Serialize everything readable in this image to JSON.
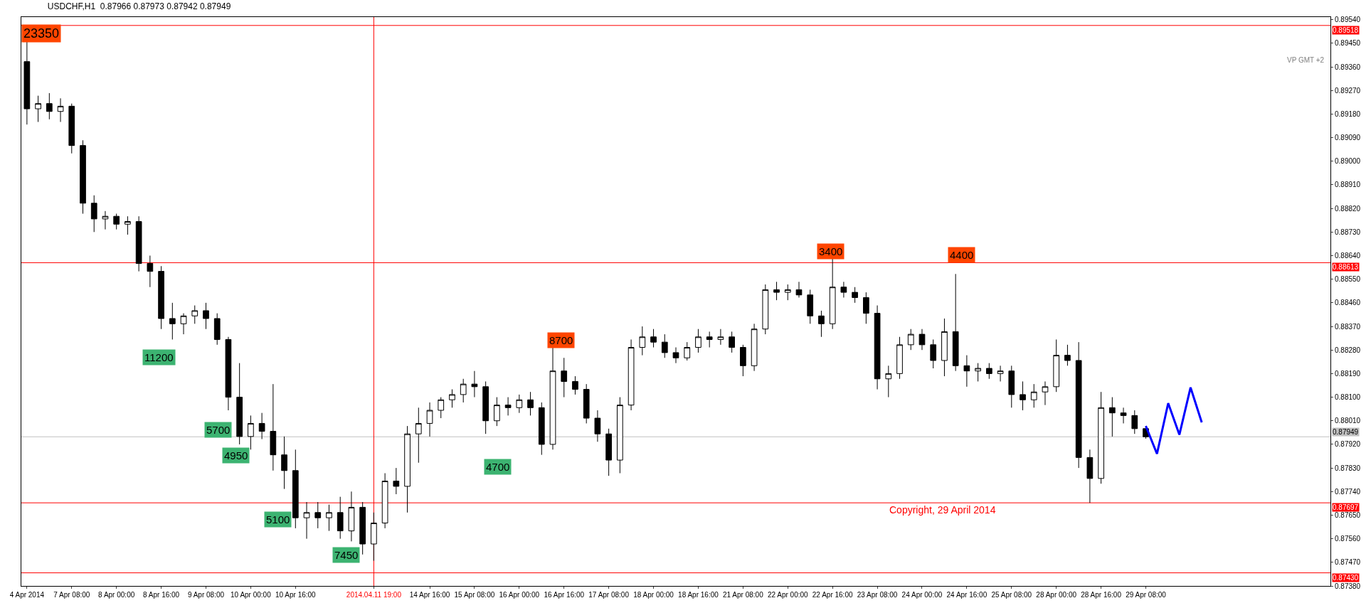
{
  "chart_data": {
    "type": "candlestick",
    "title": "USDCHF,H1  0.87966 0.87973 0.87942 0.87949",
    "color": "#000000",
    "categories": [
      "4 Apr 2014",
      null,
      null,
      null,
      "7 Apr 08:00",
      null,
      null,
      null,
      "8 Apr 00:00",
      null,
      null,
      null,
      "8 Apr 16:00",
      null,
      null,
      null,
      "9 Apr 08:00",
      null,
      null,
      null,
      "10 Apr 00:00",
      null,
      null,
      null,
      "10 Apr 16:00",
      null,
      null,
      null,
      null,
      null,
      null,
      "2014.04.11 19:00",
      null,
      null,
      null,
      null,
      "14 Apr 16:00",
      null,
      null,
      null,
      "15 Apr 08:00",
      null,
      null,
      null,
      "16 Apr 00:00",
      null,
      null,
      null,
      "16 Apr 16:00",
      null,
      null,
      null,
      "17 Apr 08:00",
      null,
      null,
      null,
      "18 Apr 00:00",
      null,
      null,
      null,
      "18 Apr 16:00",
      null,
      null,
      null,
      "21 Apr 08:00",
      null,
      null,
      null,
      "22 Apr 00:00",
      null,
      null,
      null,
      "22 Apr 16:00",
      null,
      null,
      null,
      "23 Apr 08:00",
      null,
      null,
      null,
      "24 Apr 00:00",
      null,
      null,
      null,
      "24 Apr 16:00",
      null,
      null,
      null,
      "25 Apr 08:00",
      null,
      null,
      null,
      "28 Apr 00:00",
      null,
      null,
      null,
      "28 Apr 16:00",
      null,
      null,
      null,
      "29 Apr 08:00",
      null,
      null,
      null,
      null,
      null,
      null,
      null,
      null,
      null,
      null,
      null,
      null,
      null,
      null,
      null,
      null
    ],
    "ohlc": [
      [
        0.8938,
        0.89457,
        0.8914,
        0.892
      ],
      [
        0.892,
        0.8925,
        0.8915,
        0.8922
      ],
      [
        0.8922,
        0.8926,
        0.8916,
        0.8919
      ],
      [
        0.8919,
        0.8924,
        0.8915,
        0.8921
      ],
      [
        0.8921,
        0.8922,
        0.8903,
        0.8906
      ],
      [
        0.8906,
        0.8908,
        0.888,
        0.8884
      ],
      [
        0.8884,
        0.8887,
        0.8873,
        0.8878
      ],
      [
        0.8878,
        0.8881,
        0.8874,
        0.8879
      ],
      [
        0.8879,
        0.888,
        0.8874,
        0.8876
      ],
      [
        0.8876,
        0.8879,
        0.8872,
        0.8877
      ],
      [
        0.8877,
        0.8879,
        0.8858,
        0.8861
      ],
      [
        0.8861,
        0.8864,
        0.8852,
        0.8858
      ],
      [
        0.8858,
        0.886,
        0.8836,
        0.884
      ],
      [
        0.884,
        0.8846,
        0.8832,
        0.8838
      ],
      [
        0.8838,
        0.8842,
        0.8834,
        0.8841
      ],
      [
        0.8841,
        0.8845,
        0.8838,
        0.8843
      ],
      [
        0.8843,
        0.8846,
        0.8836,
        0.884
      ],
      [
        0.884,
        0.8842,
        0.883,
        0.8832
      ],
      [
        0.8832,
        0.8833,
        0.8805,
        0.881
      ],
      [
        0.881,
        0.8823,
        0.8792,
        0.8795
      ],
      [
        0.8795,
        0.8803,
        0.879,
        0.88
      ],
      [
        0.88,
        0.8804,
        0.8794,
        0.8797
      ],
      [
        0.8797,
        0.8815,
        0.8782,
        0.8788
      ],
      [
        0.8788,
        0.8795,
        0.8775,
        0.8782
      ],
      [
        0.8782,
        0.879,
        0.876,
        0.8764
      ],
      [
        0.8764,
        0.877,
        0.8756,
        0.8766
      ],
      [
        0.8766,
        0.877,
        0.876,
        0.8764
      ],
      [
        0.8764,
        0.8769,
        0.8759,
        0.8766
      ],
      [
        0.8766,
        0.8772,
        0.8756,
        0.8759
      ],
      [
        0.8759,
        0.8774,
        0.8755,
        0.8768
      ],
      [
        0.8768,
        0.877,
        0.875,
        0.8754
      ],
      [
        0.8754,
        0.8766,
        0.87476,
        0.8762
      ],
      [
        0.8762,
        0.8781,
        0.876,
        0.8778
      ],
      [
        0.8778,
        0.8783,
        0.8773,
        0.8776
      ],
      [
        0.8776,
        0.8799,
        0.8766,
        0.8796
      ],
      [
        0.8796,
        0.8806,
        0.8785,
        0.88
      ],
      [
        0.88,
        0.8808,
        0.8795,
        0.8805
      ],
      [
        0.8805,
        0.881,
        0.8802,
        0.8809
      ],
      [
        0.8809,
        0.8813,
        0.8806,
        0.8811
      ],
      [
        0.8811,
        0.8817,
        0.8808,
        0.8815
      ],
      [
        0.8815,
        0.882,
        0.881,
        0.8814
      ],
      [
        0.8814,
        0.8816,
        0.8796,
        0.8801
      ],
      [
        0.8801,
        0.881,
        0.8799,
        0.8807
      ],
      [
        0.8807,
        0.881,
        0.8803,
        0.8806
      ],
      [
        0.8806,
        0.8811,
        0.8804,
        0.8809
      ],
      [
        0.8809,
        0.8812,
        0.8803,
        0.8806
      ],
      [
        0.8806,
        0.8808,
        0.8788,
        0.8792
      ],
      [
        0.8792,
        0.8829,
        0.879,
        0.882
      ],
      [
        0.882,
        0.8825,
        0.881,
        0.8816
      ],
      [
        0.8816,
        0.8818,
        0.8811,
        0.8813
      ],
      [
        0.8813,
        0.8815,
        0.88,
        0.8802
      ],
      [
        0.8802,
        0.8805,
        0.8793,
        0.8796
      ],
      [
        0.8796,
        0.8798,
        0.878,
        0.8786
      ],
      [
        0.8786,
        0.881,
        0.8781,
        0.8807
      ],
      [
        0.8807,
        0.8832,
        0.8805,
        0.8829
      ],
      [
        0.8829,
        0.8837,
        0.8826,
        0.8833
      ],
      [
        0.8833,
        0.8836,
        0.8829,
        0.8831
      ],
      [
        0.8831,
        0.8834,
        0.8825,
        0.8827
      ],
      [
        0.8827,
        0.8829,
        0.8823,
        0.8825
      ],
      [
        0.8825,
        0.8831,
        0.8824,
        0.8829
      ],
      [
        0.8829,
        0.8836,
        0.8827,
        0.8833
      ],
      [
        0.8833,
        0.8835,
        0.8829,
        0.8832
      ],
      [
        0.8832,
        0.8836,
        0.883,
        0.8833
      ],
      [
        0.8833,
        0.8835,
        0.8827,
        0.8829
      ],
      [
        0.8829,
        0.883,
        0.8818,
        0.8822
      ],
      [
        0.8822,
        0.8838,
        0.882,
        0.8836
      ],
      [
        0.8836,
        0.8853,
        0.8834,
        0.8851
      ],
      [
        0.8851,
        0.8854,
        0.8847,
        0.885
      ],
      [
        0.885,
        0.8853,
        0.8847,
        0.8851
      ],
      [
        0.8851,
        0.8854,
        0.8848,
        0.8849
      ],
      [
        0.8849,
        0.8851,
        0.8838,
        0.8841
      ],
      [
        0.8841,
        0.8843,
        0.8833,
        0.8838
      ],
      [
        0.8838,
        0.8863,
        0.8836,
        0.8852
      ],
      [
        0.8852,
        0.8854,
        0.8848,
        0.885
      ],
      [
        0.885,
        0.8852,
        0.8846,
        0.8848
      ],
      [
        0.8848,
        0.885,
        0.8838,
        0.8842
      ],
      [
        0.8842,
        0.8845,
        0.8813,
        0.8817
      ],
      [
        0.8817,
        0.8822,
        0.881,
        0.8819
      ],
      [
        0.8819,
        0.8833,
        0.8817,
        0.883
      ],
      [
        0.883,
        0.8836,
        0.8828,
        0.8834
      ],
      [
        0.8834,
        0.8836,
        0.8828,
        0.883
      ],
      [
        0.883,
        0.8832,
        0.8821,
        0.8824
      ],
      [
        0.8824,
        0.884,
        0.8818,
        0.8835
      ],
      [
        0.8835,
        0.8857,
        0.882,
        0.8822
      ],
      [
        0.8822,
        0.8826,
        0.8814,
        0.882
      ],
      [
        0.882,
        0.8823,
        0.8816,
        0.8821
      ],
      [
        0.8821,
        0.8823,
        0.8817,
        0.8819
      ],
      [
        0.8819,
        0.8822,
        0.8816,
        0.882
      ],
      [
        0.882,
        0.8822,
        0.8806,
        0.8811
      ],
      [
        0.8811,
        0.8816,
        0.8805,
        0.8809
      ],
      [
        0.8809,
        0.8815,
        0.8806,
        0.8812
      ],
      [
        0.8812,
        0.8816,
        0.8807,
        0.8814
      ],
      [
        0.8814,
        0.8832,
        0.8812,
        0.8826
      ],
      [
        0.8826,
        0.883,
        0.8822,
        0.8824
      ],
      [
        0.8824,
        0.8831,
        0.8783,
        0.8787
      ],
      [
        0.8787,
        0.879,
        0.87697,
        0.8779
      ],
      [
        0.8779,
        0.8812,
        0.8777,
        0.8806
      ],
      [
        0.8806,
        0.881,
        0.8795,
        0.8804
      ],
      [
        0.8804,
        0.8806,
        0.88,
        0.8803
      ],
      [
        0.8803,
        0.8805,
        0.8796,
        0.8798
      ],
      [
        0.8798,
        0.8799,
        0.87942,
        0.87949
      ],
      null,
      null,
      null,
      null,
      null,
      null,
      null,
      null,
      null,
      null,
      null,
      null,
      null,
      null,
      null,
      null
    ],
    "series": [
      {
        "type": "line",
        "color": "#0000ff",
        "values": [
          null,
          null,
          null,
          null,
          null,
          null,
          null,
          null,
          null,
          null,
          null,
          null,
          null,
          null,
          null,
          null,
          null,
          null,
          null,
          null,
          null,
          null,
          null,
          null,
          null,
          null,
          null,
          null,
          null,
          null,
          null,
          null,
          null,
          null,
          null,
          null,
          null,
          null,
          null,
          null,
          null,
          null,
          null,
          null,
          null,
          null,
          null,
          null,
          null,
          null,
          null,
          null,
          null,
          null,
          null,
          null,
          null,
          null,
          null,
          null,
          null,
          null,
          null,
          null,
          null,
          null,
          null,
          null,
          null,
          null,
          null,
          null,
          null,
          null,
          null,
          null,
          null,
          null,
          null,
          null,
          null,
          null,
          null,
          null,
          null,
          null,
          null,
          null,
          null,
          null,
          null,
          null,
          null,
          null,
          null,
          null,
          null,
          null,
          null,
          null,
          0.8799,
          0.87884,
          0.88077,
          0.87957,
          0.88137,
          0.88004,
          null,
          null,
          null,
          null,
          null,
          null,
          null,
          null,
          null,
          null,
          null
        ]
      }
    ],
    "ylim": [
      0.8738,
      0.8955
    ],
    "yticks": [
      {
        "value": 0.8954,
        "label": "0.89540"
      },
      {
        "value": 0.8945,
        "label": "0.89450"
      },
      {
        "value": 0.8936,
        "label": "0.89360"
      },
      {
        "value": 0.8927,
        "label": "0.89270"
      },
      {
        "value": 0.8918,
        "label": "0.89180"
      },
      {
        "value": 0.8909,
        "label": "0.89090"
      },
      {
        "value": 0.89,
        "label": "0.89000"
      },
      {
        "value": 0.8891,
        "label": "0.88910"
      },
      {
        "value": 0.8882,
        "label": "0.88820"
      },
      {
        "value": 0.8873,
        "label": "0.88730"
      },
      {
        "value": 0.8864,
        "label": "0.88640"
      },
      {
        "value": 0.8855,
        "label": "0.88550"
      },
      {
        "value": 0.8846,
        "label": "0.88460"
      },
      {
        "value": 0.8837,
        "label": "0.88370"
      },
      {
        "value": 0.8828,
        "label": "0.88280"
      },
      {
        "value": 0.8819,
        "label": "0.88190"
      },
      {
        "value": 0.881,
        "label": "0.88100"
      },
      {
        "value": 0.8801,
        "label": "0.88010"
      },
      {
        "value": 0.8792,
        "label": "0.87920"
      },
      {
        "value": 0.8783,
        "label": "0.87830"
      },
      {
        "value": 0.8774,
        "label": "0.87740"
      },
      {
        "value": 0.8765,
        "label": "0.87650"
      },
      {
        "value": 0.8756,
        "label": "0.87560"
      },
      {
        "value": 0.8747,
        "label": "0.87470"
      },
      {
        "value": 0.8738,
        "label": "0.87380"
      }
    ],
    "ref_lines": [
      {
        "axis": "y",
        "value": 0.89518,
        "label": "0.89518",
        "color": "#ff0000"
      },
      {
        "axis": "y",
        "value": 0.88613,
        "label": "0.88613",
        "color": "#ff0000"
      },
      {
        "axis": "y",
        "value": 0.87697,
        "label": "0.87697",
        "color": "#ff0000"
      },
      {
        "axis": "y",
        "value": 0.8743,
        "label": "0.87430",
        "color": "#ff0000"
      },
      {
        "axis": "y",
        "value": 0.87949,
        "label": "0.87949",
        "color": "#c0c0c0"
      },
      {
        "axis": "x",
        "value": "2014.04.11 19:00",
        "color": "#ff0000"
      }
    ],
    "annotations": [
      "23350",
      "11200",
      "5700",
      "4950",
      "5100",
      "7450",
      "4700",
      "8700",
      "3400",
      "4400",
      "VP GMT +2",
      "Copyright, 29 April 2014"
    ],
    "grid": false
  }
}
